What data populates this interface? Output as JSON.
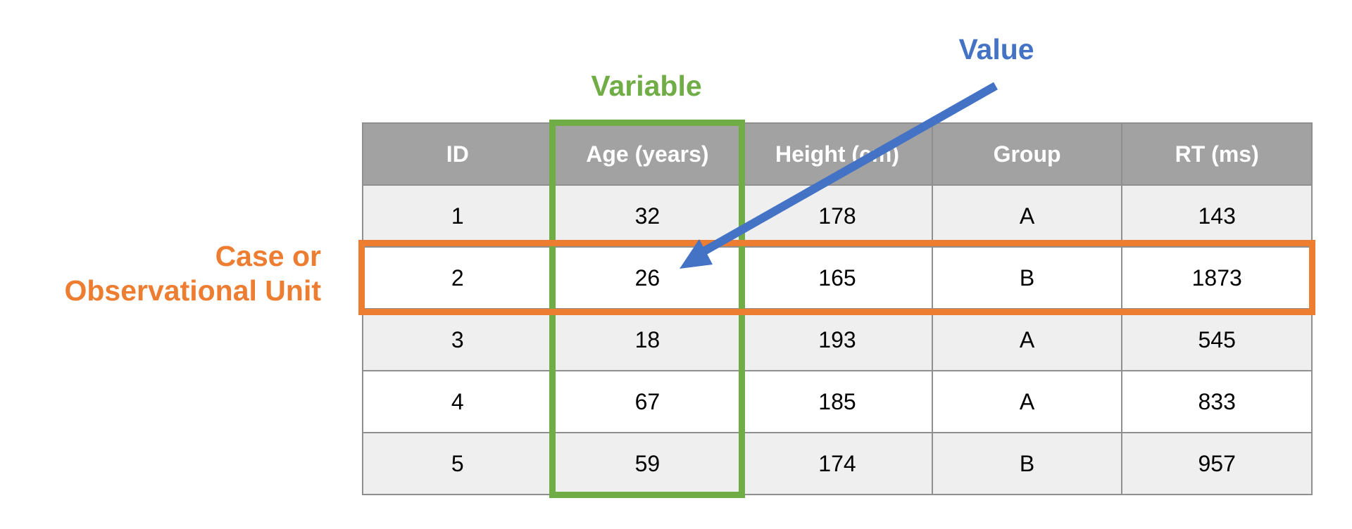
{
  "labels": {
    "variable": "Variable",
    "value": "Value",
    "case_line1": "Case or",
    "case_line2": "Observational Unit"
  },
  "colors": {
    "variable": "#70ad47",
    "value": "#4472c4",
    "case": "#ed7d31",
    "header_bg": "#a2a2a2",
    "row_alt_bg": "#efefef"
  },
  "table": {
    "headers": [
      "ID",
      "Age (years)",
      "Height (cm)",
      "Group",
      "RT (ms)"
    ],
    "rows": [
      [
        "1",
        "32",
        "178",
        "A",
        "143"
      ],
      [
        "2",
        "26",
        "165",
        "B",
        "1873"
      ],
      [
        "3",
        "18",
        "193",
        "A",
        "545"
      ],
      [
        "4",
        "67",
        "185",
        "A",
        "833"
      ],
      [
        "5",
        "59",
        "174",
        "B",
        "957"
      ]
    ]
  }
}
